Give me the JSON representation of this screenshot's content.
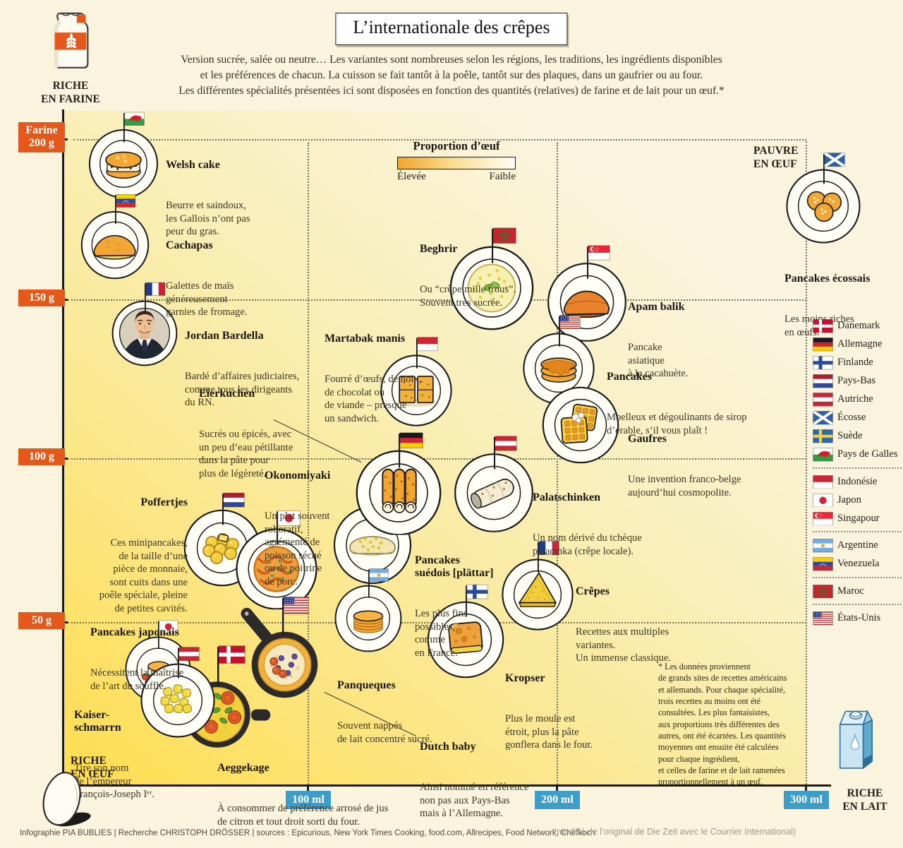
{
  "colors": {
    "accent_orange": "#E4581C",
    "accent_blue": "#3D9FC8",
    "gradient_yellow": "#FFDD4E"
  },
  "header": {
    "title": "L’internationale des crêpes",
    "intro": "Version sucrée, salée ou neutre… Les variantes sont nombreuses selon les régions, les traditions, les ingrédients disponibles\net les préférences de chacun. La cuisson se fait tantôt à la poêle, tantôt sur des plaques, dans un gaufrier ou au four.\nLes différentes spécialités présentées ici sont disposées en fonction des quantités (relatives) de farine et de lait pour un œuf.*"
  },
  "corners": {
    "rich_flour": "RICHE\nEN FARINE",
    "poor_egg": "PAUVRE\nEN ŒUF",
    "rich_egg": "RICHE\nEN ŒUF",
    "rich_milk": "RICHE\nEN LAIT"
  },
  "legend_egg": {
    "title": "Proportion d’œuf",
    "high": "Élevée",
    "low": "Faible"
  },
  "axes": {
    "y": [
      "Farine\n200 g",
      "150 g",
      "100 g",
      "50 g"
    ],
    "x": [
      "100 ml",
      "200 ml",
      "300 ml"
    ]
  },
  "foods": [
    {
      "title": "Welsh cake",
      "desc": "Beurre et saindoux,\nles Gallois n’ont pas\npeur du gras.",
      "flag": "wales",
      "dish": "welsh"
    },
    {
      "title": "Cachapas",
      "desc": "Galettes de maïs\ngénéreusement\ngarnies de fromage.",
      "flag": "venezuela",
      "dish": "cachapas"
    },
    {
      "title": "Jordan Bardella",
      "desc": "Bardé d’affaires judiciaires,\ncomme tous les dirigeants\ndu RN.",
      "flag": "france",
      "dish": "bardella"
    },
    {
      "title": "Eierkuchen",
      "desc": "Sucrés ou épicés, avec\nun peu d’eau pétillante\ndans la pâte pour\nplus de légèreté.",
      "flag": "germany",
      "dish": "eierkuchen"
    },
    {
      "title": "Beghrir",
      "desc": "Ou “crêpe mille trous”.\nSouvent très sucrée.",
      "flag": "morocco",
      "dish": "beghrir"
    },
    {
      "title": "Martabak manis",
      "desc": "Fourré d’œufs, de noix,\nde chocolat ou\nde viande – presque\nun sandwich.",
      "flag": "indonesia",
      "dish": "martabak"
    },
    {
      "title": "Apam balik",
      "desc": "Pancake\nasiatique\nà la cacahuète.",
      "flag": "singapore",
      "dish": "apam"
    },
    {
      "title": "Pancakes",
      "desc": "Moelleux et dégoulinants de sirop\nd’érable, s’il vous plaît !",
      "flag": "usa",
      "dish": "pancakes_us"
    },
    {
      "title": "Gaufres",
      "desc": "Une invention franco-belge\naujourd’hui cosmopolite.",
      "flag": "",
      "dish": "gaufres"
    },
    {
      "title": "Pancakes écossais",
      "desc": "Les moins riches\nen œufs.",
      "flag": "scotland",
      "dish": "scottish"
    },
    {
      "title": "Okonomiyaki",
      "desc": "Un plat souvent\nroboratif,\nagrémenté de\npoisson séché\nou de poitrine\nde porc.",
      "flag": "japan",
      "dish": "okonomiyaki"
    },
    {
      "title": "Palatschinken",
      "desc": "Un nom dérivé du tchèque\npalacinka (crêpe locale).",
      "flag": "austria",
      "dish": "palatschinken"
    },
    {
      "title": "Poffertjes",
      "desc": "Ces minipancakes,\nde la taille d’une\npièce de monnaie,\nsont cuits dans une\npoêle spéciale, pleine\nde petites cavités.",
      "flag": "netherlands",
      "dish": "poffertjes"
    },
    {
      "title": "Pancakes\nsuédois [plättar]",
      "desc": "Les plus fins\npossibles,\ncomme\nen France.",
      "flag": "sweden",
      "dish": "plattar"
    },
    {
      "title": "Crêpes",
      "desc": "Recettes aux multiples\nvariantes.\nUn immense classique.",
      "flag": "france",
      "dish": "crepes"
    },
    {
      "title": "Panqueques",
      "desc": "Souvent nappés\nde lait concentré sucré.",
      "flag": "argentina",
      "dish": "panqueques"
    },
    {
      "title": "Kropser",
      "desc": "Plus le moule est\nétroit, plus la pâte\ngonflera dans le four.",
      "flag": "finland",
      "dish": "kropser"
    },
    {
      "title": "Dutch baby",
      "desc": "Ainsi nommé en référence\nnon pas aux Pays-Bas\nmais à l’Allemagne.",
      "flag": "usa",
      "dish": "dutch_baby"
    },
    {
      "title": "Pancakes japonais",
      "desc": "Nécessitent la maîtrise\nde l’art du soufflé.",
      "flag": "japan",
      "dish": "pancakes_jp"
    },
    {
      "title": "Kaiser-\nschmarrn",
      "desc": "Tire son nom\nde l’empereur\nFrançois-Joseph Iᵉʳ.",
      "flag": "austria",
      "dish": "kaiser"
    },
    {
      "title": "Aeggekage",
      "desc": "À consommer de préférence arrosé de jus\nde citron et tout droit sorti du four.",
      "flag": "denmark",
      "dish": "aeggekage"
    }
  ],
  "flag_legend": {
    "groups": [
      {
        "items": [
          {
            "label": "Danemark",
            "flag": "denmark"
          },
          {
            "label": "Allemagne",
            "flag": "germany"
          },
          {
            "label": "Finlande",
            "flag": "finland"
          },
          {
            "label": "Pays-Bas",
            "flag": "netherlands"
          },
          {
            "label": "Autriche",
            "flag": "austria"
          },
          {
            "label": "Écosse",
            "flag": "scotland"
          },
          {
            "label": "Suède",
            "flag": "sweden"
          },
          {
            "label": "Pays de Galles",
            "flag": "wales"
          }
        ]
      },
      {
        "items": [
          {
            "label": "Indonésie",
            "flag": "indonesia"
          },
          {
            "label": "Japon",
            "flag": "japan"
          },
          {
            "label": "Singapour",
            "flag": "singapore"
          }
        ]
      },
      {
        "items": [
          {
            "label": "Argentine",
            "flag": "argentina"
          },
          {
            "label": "Venezuela",
            "flag": "venezuela"
          }
        ]
      },
      {
        "items": [
          {
            "label": "Maroc",
            "flag": "morocco"
          }
        ]
      },
      {
        "items": [
          {
            "label": "États-Unis",
            "flag": "usa"
          }
        ]
      }
    ]
  },
  "footnote": "* Les données proviennent\nde grands sites de recettes américains\net allemands. Pour chaque spécialité,\ntrois recettes au moins ont été\nconsultées. Les plus fantaisistes,\naux proportions très différentes des\nautres, ont été écartées. Les quantités\nmoyennes ont ensuite été calculées\npour chaque ingrédient,\net celles de farine et de lait ramenées\nproportionnellement à un œuf.",
  "footer": {
    "credits": "Infographie PIA BUBLIES | Recherche CHRISTOPH DRÖSSER | sources : Epicurious, New York Times Cooking, food.com, Allrecipes, Food Network, Chefkoch",
    "modified": "(modifié de l’original de Die Zeit avec le Courrier International)"
  }
}
